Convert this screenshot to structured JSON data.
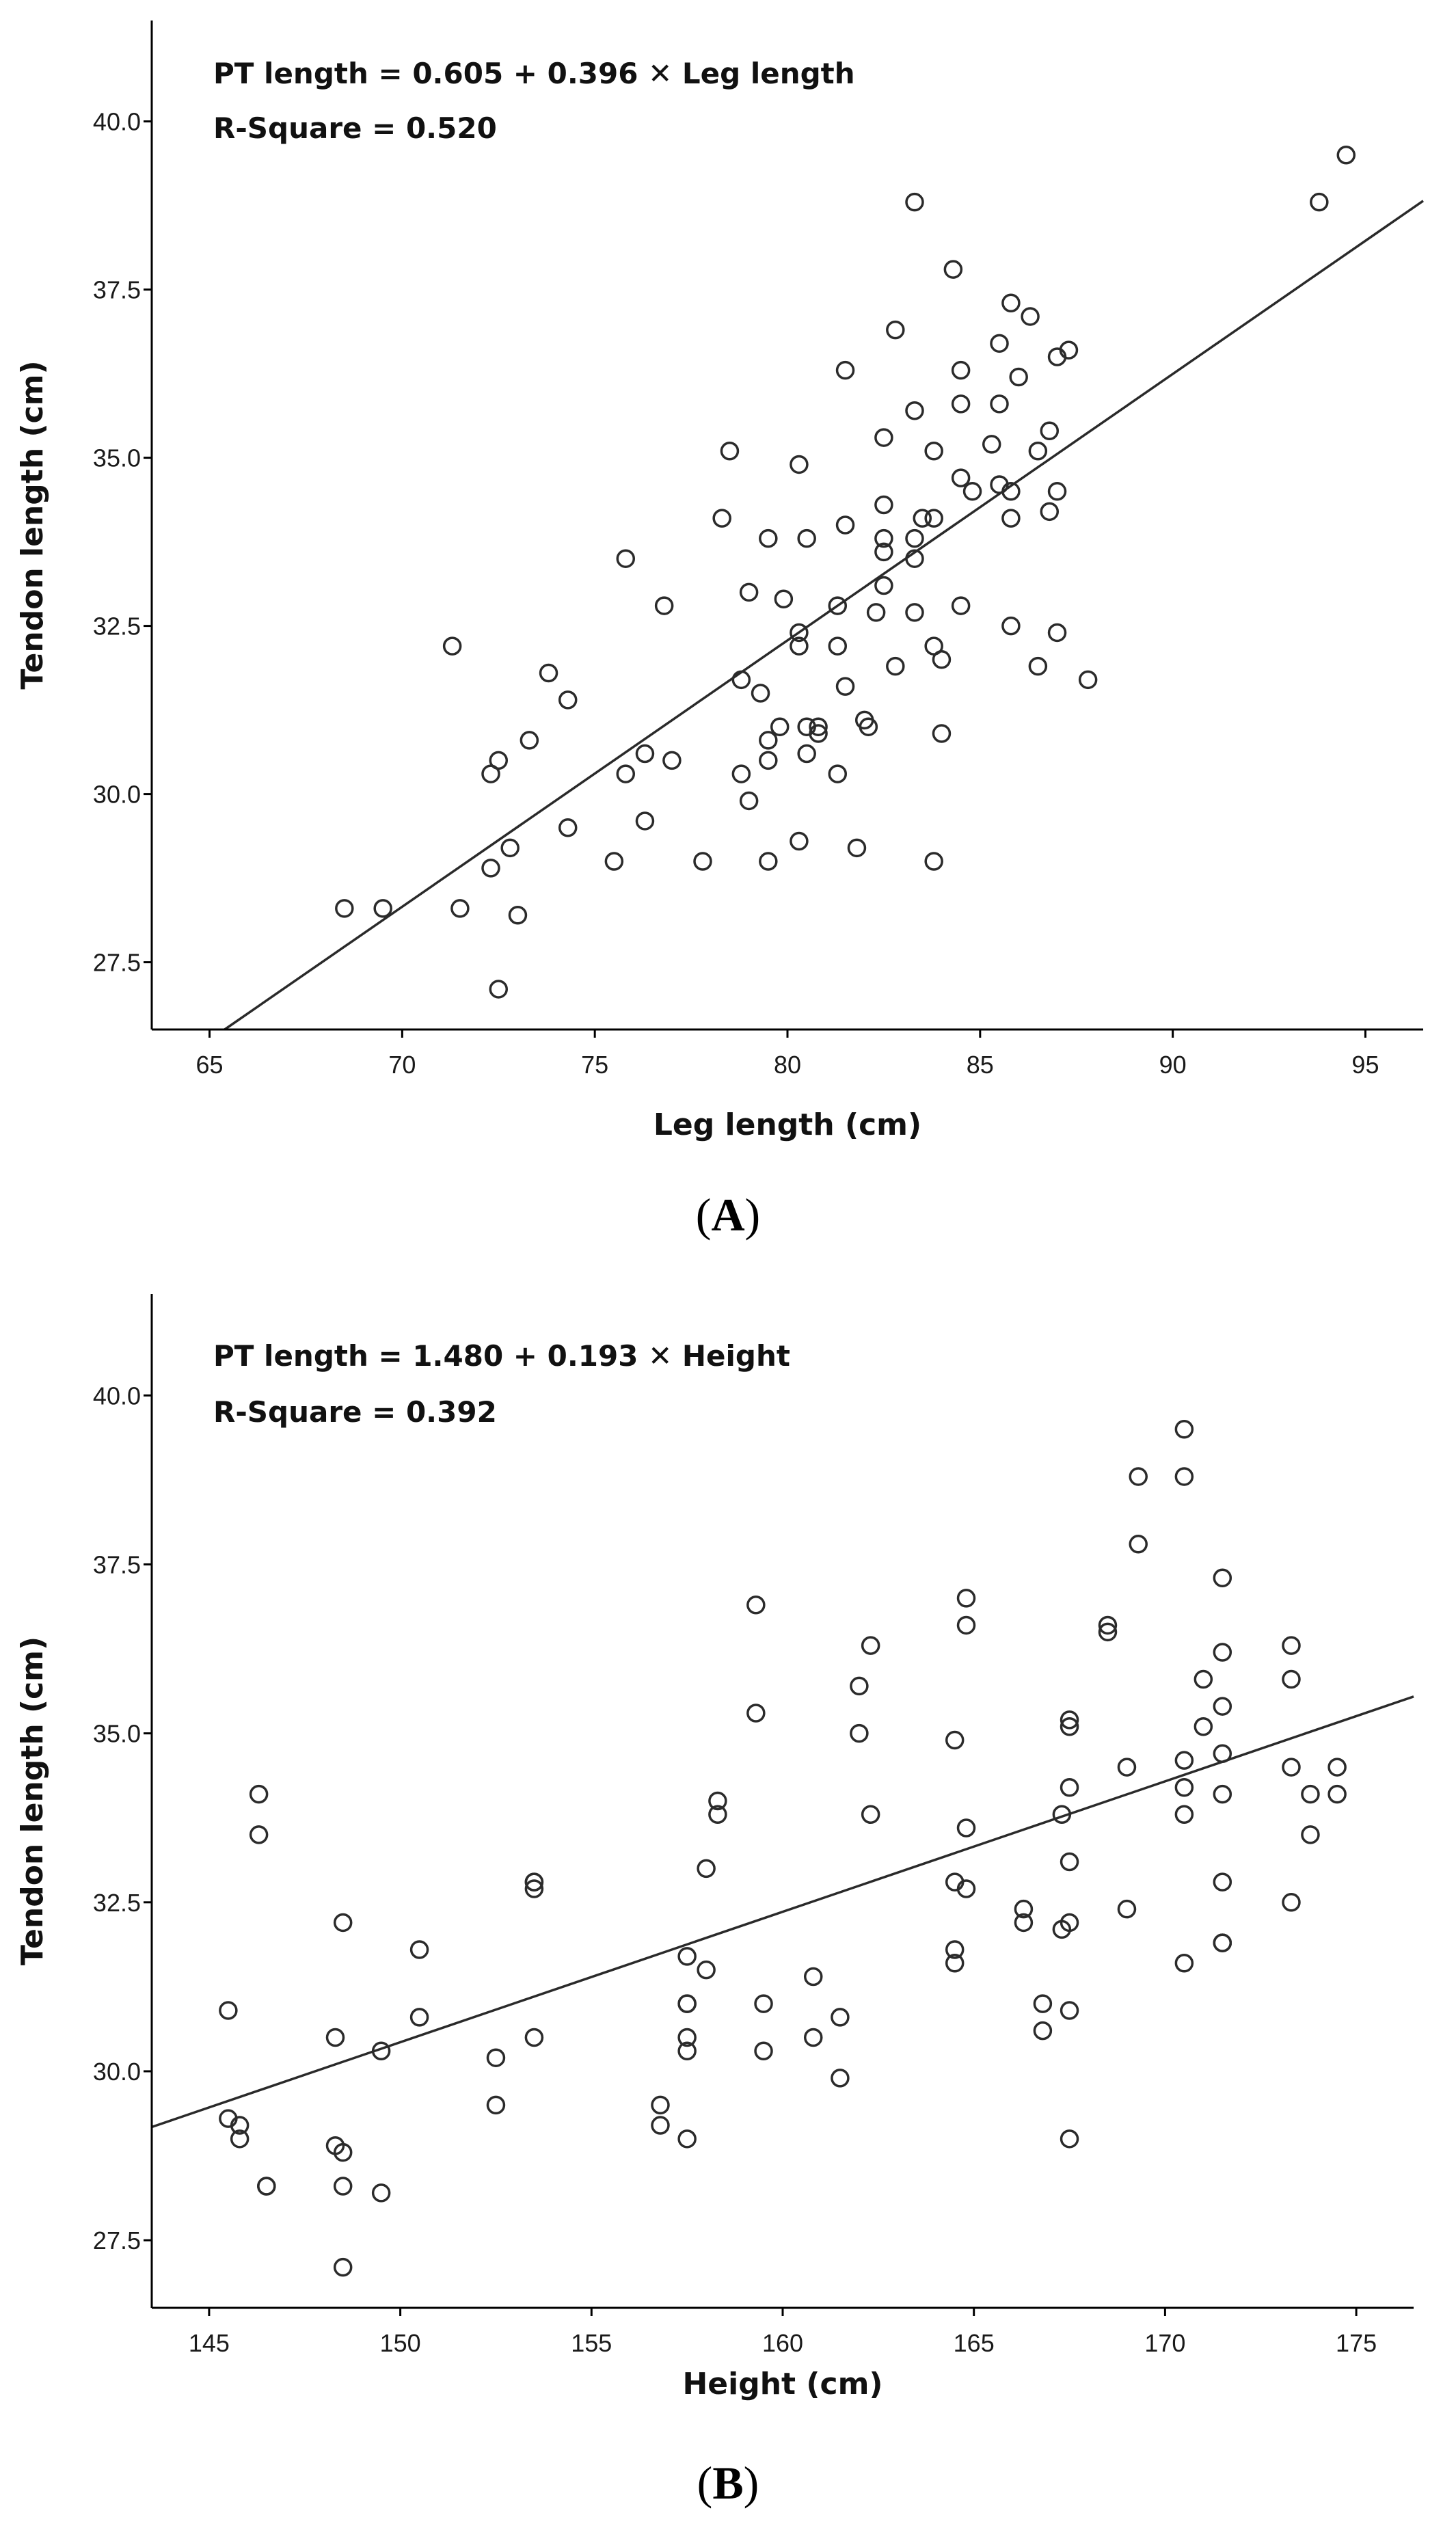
{
  "chart_data": [
    {
      "type": "scatter",
      "panel_label": "A",
      "annotation_line1": "PT length = 0.605  + 0.396  ✕  Leg length",
      "annotation_line2": "R-Square = 0.520",
      "xlabel": "Leg length (cm)",
      "ylabel": "Tendon length (cm)",
      "xlim": [
        63.5,
        96.5
      ],
      "ylim": [
        26.5,
        41.5
      ],
      "xticks": [
        65,
        70,
        75,
        80,
        85,
        90,
        95
      ],
      "yticks": [
        27.5,
        30.0,
        32.5,
        35.0,
        37.5,
        40.0
      ],
      "fit": {
        "intercept": 0.605,
        "slope": 0.396
      },
      "points": [
        [
          68.5,
          28.3
        ],
        [
          69.5,
          28.3
        ],
        [
          71.3,
          32.2
        ],
        [
          71.5,
          28.3
        ],
        [
          72.3,
          30.3
        ],
        [
          72.5,
          30.5
        ],
        [
          72.3,
          28.9
        ],
        [
          72.5,
          27.1
        ],
        [
          72.8,
          29.2
        ],
        [
          73.0,
          28.2
        ],
        [
          73.3,
          30.8
        ],
        [
          73.8,
          31.8
        ],
        [
          74.3,
          31.4
        ],
        [
          74.3,
          29.5
        ],
        [
          75.5,
          29.0
        ],
        [
          75.8,
          33.5
        ],
        [
          75.8,
          30.3
        ],
        [
          76.3,
          30.6
        ],
        [
          76.3,
          29.6
        ],
        [
          76.8,
          32.8
        ],
        [
          77.0,
          30.5
        ],
        [
          77.8,
          29.0
        ],
        [
          78.3,
          34.1
        ],
        [
          78.5,
          35.1
        ],
        [
          78.8,
          31.7
        ],
        [
          78.8,
          30.3
        ],
        [
          79.0,
          33.0
        ],
        [
          79.0,
          29.9
        ],
        [
          79.3,
          31.5
        ],
        [
          79.5,
          33.8
        ],
        [
          79.5,
          30.8
        ],
        [
          79.5,
          30.5
        ],
        [
          79.5,
          29.0
        ],
        [
          79.8,
          31.0
        ],
        [
          79.9,
          32.9
        ],
        [
          80.3,
          34.9
        ],
        [
          80.3,
          32.4
        ],
        [
          80.3,
          32.2
        ],
        [
          80.3,
          29.3
        ],
        [
          80.5,
          33.8
        ],
        [
          80.5,
          31.0
        ],
        [
          80.5,
          30.6
        ],
        [
          80.8,
          31.0
        ],
        [
          80.8,
          30.9
        ],
        [
          81.3,
          32.8
        ],
        [
          81.3,
          32.2
        ],
        [
          81.3,
          30.3
        ],
        [
          81.5,
          36.3
        ],
        [
          81.5,
          34.0
        ],
        [
          81.5,
          31.6
        ],
        [
          81.8,
          29.2
        ],
        [
          82.0,
          31.1
        ],
        [
          82.1,
          31.0
        ],
        [
          82.3,
          32.7
        ],
        [
          82.5,
          35.3
        ],
        [
          82.5,
          34.3
        ],
        [
          82.5,
          33.8
        ],
        [
          82.5,
          33.6
        ],
        [
          82.5,
          33.1
        ],
        [
          82.8,
          36.9
        ],
        [
          82.8,
          31.9
        ],
        [
          83.3,
          38.8
        ],
        [
          83.3,
          35.7
        ],
        [
          83.3,
          33.8
        ],
        [
          83.3,
          33.5
        ],
        [
          83.3,
          32.7
        ],
        [
          83.5,
          34.1
        ],
        [
          83.8,
          35.1
        ],
        [
          83.8,
          34.1
        ],
        [
          83.8,
          32.2
        ],
        [
          83.8,
          29.0
        ],
        [
          84.0,
          32.0
        ],
        [
          84.0,
          30.9
        ],
        [
          84.3,
          37.8
        ],
        [
          84.5,
          36.3
        ],
        [
          84.5,
          35.8
        ],
        [
          84.5,
          34.7
        ],
        [
          84.5,
          32.8
        ],
        [
          84.8,
          34.5
        ],
        [
          85.3,
          35.2
        ],
        [
          85.5,
          36.7
        ],
        [
          85.5,
          35.8
        ],
        [
          85.5,
          34.6
        ],
        [
          85.8,
          37.3
        ],
        [
          85.8,
          34.5
        ],
        [
          85.8,
          34.1
        ],
        [
          85.8,
          32.5
        ],
        [
          86.0,
          36.2
        ],
        [
          86.3,
          37.1
        ],
        [
          86.5,
          35.1
        ],
        [
          86.5,
          31.9
        ],
        [
          86.8,
          35.4
        ],
        [
          86.8,
          34.2
        ],
        [
          87.0,
          36.5
        ],
        [
          87.0,
          34.5
        ],
        [
          87.0,
          32.4
        ],
        [
          87.3,
          36.6
        ],
        [
          87.8,
          31.7
        ],
        [
          93.8,
          38.8
        ],
        [
          94.5,
          39.5
        ]
      ]
    },
    {
      "type": "scatter",
      "panel_label": "B",
      "annotation_line1": "PT length = 1.480  + 0.193  ✕  Height",
      "annotation_line2": "R-Square = 0.392",
      "xlabel": "Height (cm)",
      "ylabel": "Tendon length (cm)",
      "xlim": [
        143.5,
        176.5
      ],
      "ylim": [
        26.5,
        41.5
      ],
      "xticks": [
        145,
        150,
        155,
        160,
        165,
        170,
        175
      ],
      "yticks": [
        27.5,
        30.0,
        32.5,
        35.0,
        37.5,
        40.0
      ],
      "fit": {
        "intercept": 1.48,
        "slope": 0.193
      },
      "points": [
        [
          145.5,
          30.9
        ],
        [
          145.5,
          29.3
        ],
        [
          145.8,
          29.2
        ],
        [
          145.8,
          29.0
        ],
        [
          146.3,
          34.1
        ],
        [
          146.3,
          33.5
        ],
        [
          146.5,
          28.3
        ],
        [
          146.5,
          28.3
        ],
        [
          148.3,
          30.5
        ],
        [
          148.3,
          28.9
        ],
        [
          148.5,
          32.2
        ],
        [
          148.5,
          28.8
        ],
        [
          148.5,
          28.3
        ],
        [
          148.5,
          27.1
        ],
        [
          149.5,
          30.3
        ],
        [
          149.5,
          28.2
        ],
        [
          150.5,
          31.8
        ],
        [
          150.5,
          30.8
        ],
        [
          152.5,
          30.2
        ],
        [
          152.5,
          29.5
        ],
        [
          153.5,
          32.8
        ],
        [
          153.5,
          32.7
        ],
        [
          153.5,
          32.8
        ],
        [
          153.5,
          30.5
        ],
        [
          156.8,
          29.5
        ],
        [
          156.8,
          29.2
        ],
        [
          157.5,
          31.7
        ],
        [
          157.5,
          31.0
        ],
        [
          157.5,
          31.0
        ],
        [
          157.5,
          30.5
        ],
        [
          157.5,
          30.3
        ],
        [
          157.5,
          29.0
        ],
        [
          158.0,
          33.0
        ],
        [
          158.0,
          31.5
        ],
        [
          158.3,
          34.0
        ],
        [
          158.3,
          33.8
        ],
        [
          159.3,
          36.9
        ],
        [
          159.3,
          35.3
        ],
        [
          159.5,
          31.0
        ],
        [
          159.5,
          30.3
        ],
        [
          160.8,
          31.4
        ],
        [
          160.8,
          30.5
        ],
        [
          161.5,
          30.8
        ],
        [
          161.5,
          29.9
        ],
        [
          162.0,
          35.7
        ],
        [
          162.0,
          35.0
        ],
        [
          162.3,
          36.3
        ],
        [
          162.3,
          33.8
        ],
        [
          164.5,
          34.9
        ],
        [
          164.5,
          32.8
        ],
        [
          164.5,
          31.8
        ],
        [
          164.5,
          31.6
        ],
        [
          164.8,
          37.0
        ],
        [
          164.8,
          36.6
        ],
        [
          164.8,
          33.6
        ],
        [
          164.8,
          32.7
        ],
        [
          166.3,
          32.4
        ],
        [
          166.3,
          32.2
        ],
        [
          166.8,
          31.0
        ],
        [
          166.8,
          30.6
        ],
        [
          167.3,
          33.8
        ],
        [
          167.3,
          32.1
        ],
        [
          167.5,
          35.2
        ],
        [
          167.5,
          35.1
        ],
        [
          167.5,
          34.2
        ],
        [
          167.5,
          33.1
        ],
        [
          167.5,
          32.2
        ],
        [
          167.5,
          30.9
        ],
        [
          167.5,
          29.0
        ],
        [
          168.5,
          36.6
        ],
        [
          168.5,
          36.5
        ],
        [
          169.0,
          34.5
        ],
        [
          169.0,
          32.4
        ],
        [
          169.3,
          38.8
        ],
        [
          169.3,
          37.8
        ],
        [
          170.5,
          39.5
        ],
        [
          170.5,
          38.8
        ],
        [
          170.5,
          34.6
        ],
        [
          170.5,
          34.2
        ],
        [
          170.5,
          33.8
        ],
        [
          170.5,
          31.6
        ],
        [
          171.0,
          35.8
        ],
        [
          171.0,
          35.1
        ],
        [
          171.5,
          37.3
        ],
        [
          171.5,
          36.2
        ],
        [
          171.5,
          35.4
        ],
        [
          171.5,
          34.7
        ],
        [
          171.5,
          34.1
        ],
        [
          171.5,
          32.8
        ],
        [
          171.5,
          31.9
        ],
        [
          171.5,
          31.9
        ],
        [
          173.3,
          36.3
        ],
        [
          173.3,
          35.8
        ],
        [
          173.3,
          34.5
        ],
        [
          173.3,
          32.5
        ],
        [
          173.8,
          34.1
        ],
        [
          173.8,
          33.5
        ],
        [
          174.5,
          34.5
        ],
        [
          174.5,
          34.1
        ]
      ]
    }
  ]
}
